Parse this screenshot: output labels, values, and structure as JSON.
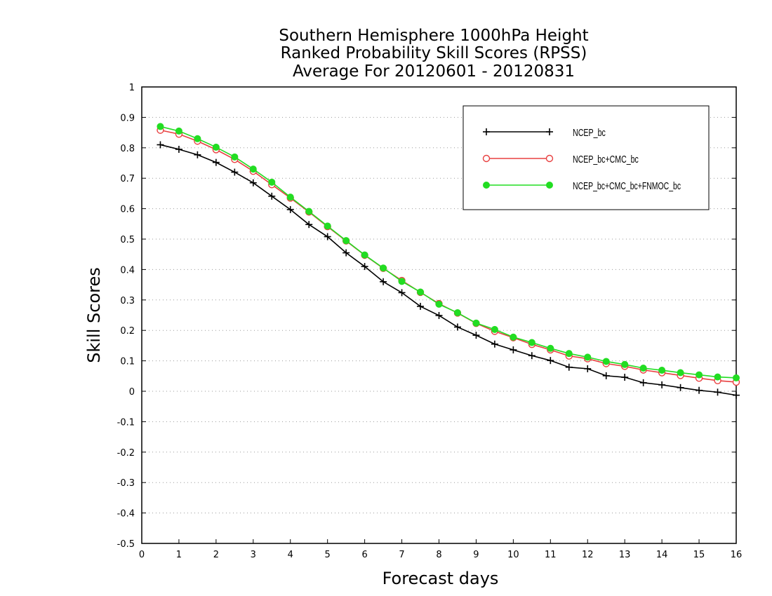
{
  "chart_data": {
    "type": "line",
    "title": [
      "Southern Hemisphere 1000hPa Height",
      "Ranked Probability Skill Scores (RPSS)",
      "Average For 20120601 - 20120831"
    ],
    "xlabel": "Forecast days",
    "ylabel": "Skill Scores",
    "xlim": [
      0,
      16
    ],
    "ylim": [
      -0.5,
      1
    ],
    "x_ticks": [
      0,
      1,
      2,
      3,
      4,
      5,
      6,
      7,
      8,
      9,
      10,
      11,
      12,
      13,
      14,
      15,
      16
    ],
    "y_ticks": [
      1,
      0.9,
      0.8,
      0.7,
      0.6,
      0.5,
      0.4,
      0.3,
      0.2,
      0.1,
      0,
      -0.1,
      -0.2,
      -0.3,
      -0.4,
      -0.5
    ],
    "grid": "horizontal dotted",
    "legend_position": "top-right",
    "x": [
      0.5,
      1,
      1.5,
      2,
      2.5,
      3,
      3.5,
      4,
      4.5,
      5,
      5.5,
      6,
      6.5,
      7,
      7.5,
      8,
      8.5,
      9,
      9.5,
      10,
      10.5,
      11,
      11.5,
      12,
      12.5,
      13,
      13.5,
      14,
      14.5,
      15,
      15.5,
      16
    ],
    "series": [
      {
        "name": "NCEP_bc",
        "color": "#000000",
        "marker": "plus",
        "values": [
          0.81,
          0.795,
          0.777,
          0.752,
          0.72,
          0.685,
          0.641,
          0.597,
          0.548,
          0.508,
          0.455,
          0.41,
          0.36,
          0.324,
          0.279,
          0.249,
          0.211,
          0.184,
          0.155,
          0.136,
          0.117,
          0.101,
          0.079,
          0.074,
          0.051,
          0.046,
          0.028,
          0.021,
          0.012,
          0.003,
          -0.003,
          -0.013
        ]
      },
      {
        "name": "NCEP_bc+CMC_bc",
        "color": "#e84040",
        "marker": "open-circle",
        "values": [
          0.858,
          0.845,
          0.822,
          0.794,
          0.762,
          0.723,
          0.679,
          0.635,
          0.589,
          0.541,
          0.494,
          0.447,
          0.404,
          0.364,
          0.325,
          0.288,
          0.257,
          0.223,
          0.197,
          0.176,
          0.154,
          0.136,
          0.116,
          0.107,
          0.091,
          0.082,
          0.07,
          0.061,
          0.052,
          0.043,
          0.035,
          0.03
        ]
      },
      {
        "name": "NCEP_bc+CMC_bc+FNMOC_bc",
        "color": "#22dd22",
        "marker": "filled-circle",
        "values": [
          0.87,
          0.855,
          0.83,
          0.802,
          0.77,
          0.73,
          0.687,
          0.638,
          0.591,
          0.543,
          0.495,
          0.448,
          0.405,
          0.361,
          0.326,
          0.286,
          0.258,
          0.224,
          0.203,
          0.178,
          0.16,
          0.141,
          0.124,
          0.112,
          0.098,
          0.088,
          0.076,
          0.069,
          0.061,
          0.054,
          0.047,
          0.044
        ]
      }
    ]
  }
}
